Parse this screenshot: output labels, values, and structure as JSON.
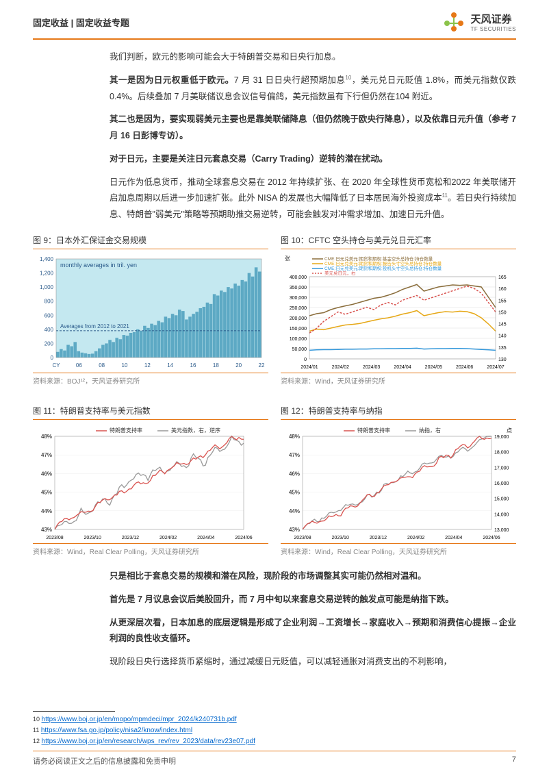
{
  "header": {
    "category": "固定收益 | 固定收益专题",
    "logo_cn": "天风证券",
    "logo_en": "TF SECURITIES"
  },
  "paragraphs": {
    "p1": "我们判断，欧元的影响可能会大于特朗普交易和日央行加息。",
    "p2a": "其一是因为日元权重低于欧元。",
    "p2b": "7 月 31 日日央行超预期加息",
    "p2c": "，美元兑日元贬值 1.8%，而美元指数仅跌 0.4%。后续叠加 7 月美联储议息会议信号偏鸽，美元指数虽有下行但仍然在104 附近。",
    "p3": "其二也是因为，要实现弱美元主要也是靠美联储降息（但仍然晚于欧央行降息），以及依靠日元升值（参考 7 月 16 日彭博专访）。",
    "p4": "对于日元，主要是关注日元套息交易（Carry Trading）逆转的潜在扰动。",
    "p5a": "日元作为低息货币，推动全球套息交易在 2012 年持续扩张、在 2020 年全球性货币宽松和2022 年美联储开启加息周期以后进一步加速扩张。此外 NISA 的发展也大幅降低了日本居民海外投资成本",
    "p5b": "。若日央行持续加息、特朗普\"弱美元\"策略等预期助推交易逆转，可能会触发对冲需求增加、加速日元升值。",
    "p6": "只是相比于套息交易的规模和潜在风险，现阶段的市场调整其实可能仍然相对温和。",
    "p7": "首先是 7 月议息会议后美股回升，而 7 月中旬以来套息交易逆转的触发点可能是纳指下跌。",
    "p8": "从更深层次看，日本加息的底层逻辑是形成了企业利润→工资增长→家庭收入→预期和消费信心提振→企业利润的良性收支循环。",
    "p9": "现阶段日央行选择货币紧缩时，通过减缓日元贬值，可以减轻通胀对消费支出的不利影响，"
  },
  "chart9": {
    "title": "图 9：日本外汇保证金交易规模",
    "source": "资料来源：BOJ¹²，天风证券研究所",
    "type": "bar",
    "annotation1": "monthly averages in tril. yen",
    "annotation2": "Averages from 2012 to 2021",
    "y_ticks": [
      0,
      200,
      400,
      600,
      800,
      1000,
      1200,
      1400
    ],
    "x_labels": [
      "CY",
      "06",
      "08",
      "10",
      "12",
      "14",
      "16",
      "18",
      "20",
      "22"
    ],
    "background_color": "#c4e8f0",
    "bar_color": "#5da9c4",
    "reference_line_y": 380,
    "data": [
      80,
      120,
      100,
      180,
      160,
      220,
      90,
      70,
      60,
      50,
      55,
      90,
      130,
      180,
      200,
      250,
      220,
      280,
      260,
      320,
      310,
      350,
      360,
      400,
      380,
      450,
      420,
      480,
      460,
      520,
      500,
      580,
      560,
      620,
      600,
      680,
      660,
      540,
      580,
      620,
      650,
      700,
      720,
      780,
      760,
      900,
      880,
      950,
      930,
      1000,
      980,
      1050,
      1020,
      1100,
      1080,
      1200,
      1150,
      1280,
      1220
    ]
  },
  "chart10": {
    "title": "图 10：CFTC 空头持仓与美元兑日元汇率",
    "source": "资料来源：Wind，天风证券研究所",
    "type": "line",
    "y_left_label": "张",
    "y_left_ticks": [
      0,
      50000,
      100000,
      150000,
      200000,
      250000,
      300000,
      350000,
      400000
    ],
    "y_right_ticks": [
      130,
      135,
      140,
      145,
      150,
      155,
      160,
      165
    ],
    "x_labels": [
      "2024/01",
      "2024/02",
      "2024/03",
      "2024/04",
      "2024/05",
      "2024/06",
      "2024/07"
    ],
    "legend": [
      {
        "label": "CME:日元兑美元:期货和期权:基金空头总持仓:持仓数量",
        "color": "#8a6d3b"
      },
      {
        "label": "CME:日元兑美元:期货和期权:报告头寸空头总持仓:持仓数量",
        "color": "#e6a817"
      },
      {
        "label": "CME:日元兑美元:期货和期权:投机头寸空头总持仓:持仓数量",
        "color": "#3498db"
      },
      {
        "label": "美元兑日元，右",
        "color": "#d9534f"
      }
    ],
    "series": {
      "brown": [
        210000,
        220000,
        225000,
        240000,
        250000,
        258000,
        265000,
        275000,
        285000,
        295000,
        300000,
        310000,
        322000,
        338000,
        350000,
        362000,
        330000,
        340000,
        350000,
        355000,
        360000,
        358000,
        360000,
        355000,
        350000,
        300000,
        250000
      ],
      "orange": [
        135000,
        145000,
        142000,
        150000,
        158000,
        165000,
        168000,
        172000,
        180000,
        188000,
        195000,
        200000,
        208000,
        218000,
        225000,
        235000,
        210000,
        218000,
        225000,
        230000,
        228000,
        232000,
        230000,
        220000,
        200000,
        170000,
        135000
      ],
      "blue": [
        42000,
        44000,
        45000,
        45000,
        46000,
        47000,
        47000,
        48000,
        48000,
        49000,
        49000,
        50000,
        50000,
        51000,
        51000,
        52000,
        48000,
        49000,
        50000,
        50000,
        51000,
        51000,
        50000,
        48000,
        46000,
        44000,
        42000
      ],
      "red": [
        141,
        143,
        146,
        148,
        150,
        149,
        150,
        151,
        152,
        151,
        153,
        154,
        153,
        155,
        156,
        157,
        155,
        156,
        157,
        158,
        159,
        160,
        161,
        160,
        158,
        154,
        150
      ]
    }
  },
  "chart11": {
    "title": "图 11：特朗普支持率与美元指数",
    "source": "资料来源：Wind，Real  Clear Polling，天风证券研究所",
    "type": "line",
    "y_left_ticks": [
      "43%",
      "44%",
      "45%",
      "46%",
      "47%",
      "48%"
    ],
    "x_labels": [
      "2023/08",
      "2023/10",
      "2023/12",
      "2024/02",
      "2024/04",
      "2024/06"
    ],
    "legend": [
      {
        "label": "特朗普支持率",
        "color": "#d9534f"
      },
      {
        "label": "美元指数，右，逆序",
        "color": "#999999"
      }
    ]
  },
  "chart12": {
    "title": "图 12：特朗普支持率与纳指",
    "source": "资料来源：Wind，Real  Clear Polling，天风证券研究所",
    "type": "line",
    "y_left_ticks": [
      "43%",
      "44%",
      "45%",
      "46%",
      "47%",
      "48%"
    ],
    "y_right_label": "点",
    "y_right_ticks": [
      13000,
      14000,
      15000,
      16000,
      17000,
      18000,
      19000
    ],
    "x_labels": [
      "2023/08",
      "2023/10",
      "2023/12",
      "2024/02",
      "2024/04",
      "2024/06"
    ],
    "legend": [
      {
        "label": "特朗普支持率",
        "color": "#d9534f"
      },
      {
        "label": "纳指，右",
        "color": "#999999"
      }
    ]
  },
  "footnotes": {
    "f10": "https://www.boj.or.jp/en/mopo/mpmdeci/mpr_2024/k240731b.pdf",
    "f11": "https://www.fsa.go.jp/policy/nisa2/know/index.html",
    "f12": "https://www.boj.or.jp/en/research/wps_rev/rev_2023/data/rev23e07.pdf"
  },
  "footer": {
    "disclaimer": "请务必阅读正文之后的信息披露和免责申明",
    "page": "7"
  }
}
